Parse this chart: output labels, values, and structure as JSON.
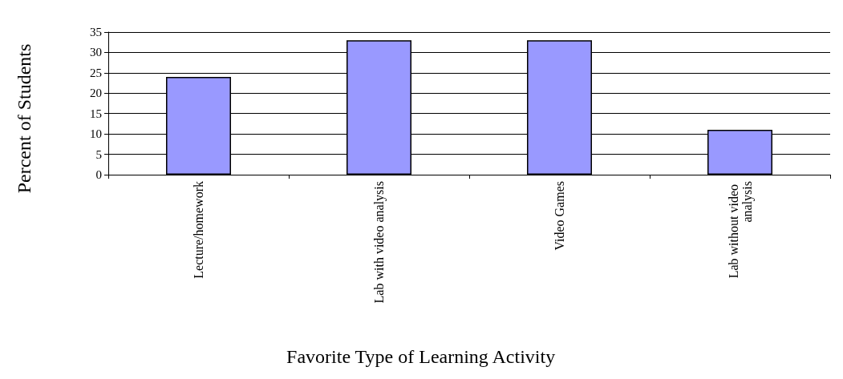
{
  "chart_data": {
    "type": "bar",
    "xlabel": "Favorite Type of Learning Activity",
    "ylabel": "Percent of Students",
    "categories": [
      "Lecture/homework",
      "Lab with video analysis",
      "Video Games",
      "Lab without video analysis"
    ],
    "values": [
      24,
      33,
      33,
      11
    ],
    "color": "#9999ff",
    "ylim": [
      0,
      35
    ],
    "yticks": [
      0,
      5,
      10,
      15,
      20,
      25,
      30,
      35
    ],
    "grid": "y"
  }
}
